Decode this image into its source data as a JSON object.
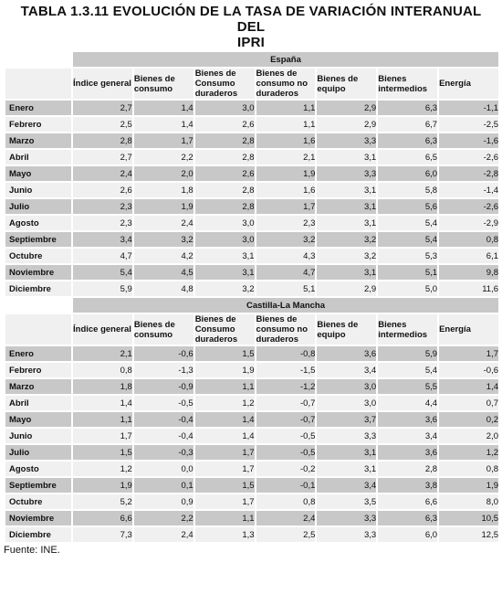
{
  "title": {
    "line1": "TABLA 1.3.11 EVOLUCIÓN  DE LA TASA DE VARIACIÓN INTERANUAL DEL",
    "line2": "IPRI"
  },
  "columns": [
    "Índice general",
    "Bienes de consumo",
    "Bienes de Consumo duraderos",
    "Bienes de consumo no duraderos",
    "Bienes de equipo",
    "Bienes intermedios",
    "Energía"
  ],
  "sections": [
    {
      "region": "España",
      "rows": [
        {
          "month": "Enero",
          "values": [
            "2,7",
            "1,4",
            "3,0",
            "1,1",
            "2,9",
            "6,3",
            "-1,1"
          ]
        },
        {
          "month": "Febrero",
          "values": [
            "2,5",
            "1,4",
            "2,6",
            "1,1",
            "2,9",
            "6,7",
            "-2,5"
          ]
        },
        {
          "month": "Marzo",
          "values": [
            "2,8",
            "1,7",
            "2,8",
            "1,6",
            "3,3",
            "6,3",
            "-1,6"
          ]
        },
        {
          "month": "Abril",
          "values": [
            "2,7",
            "2,2",
            "2,8",
            "2,1",
            "3,1",
            "6,5",
            "-2,6"
          ]
        },
        {
          "month": "Mayo",
          "values": [
            "2,4",
            "2,0",
            "2,6",
            "1,9",
            "3,3",
            "6,0",
            "-2,8"
          ]
        },
        {
          "month": "Junio",
          "values": [
            "2,6",
            "1,8",
            "2,8",
            "1,6",
            "3,1",
            "5,8",
            "-1,4"
          ]
        },
        {
          "month": "Julio",
          "values": [
            "2,3",
            "1,9",
            "2,8",
            "1,7",
            "3,1",
            "5,6",
            "-2,6"
          ]
        },
        {
          "month": "Agosto",
          "values": [
            "2,3",
            "2,4",
            "3,0",
            "2,3",
            "3,1",
            "5,4",
            "-2,9"
          ]
        },
        {
          "month": "Septiembre",
          "values": [
            "3,4",
            "3,2",
            "3,0",
            "3,2",
            "3,2",
            "5,4",
            "0,8"
          ]
        },
        {
          "month": "Octubre",
          "values": [
            "4,7",
            "4,2",
            "3,1",
            "4,3",
            "3,2",
            "5,3",
            "6,1"
          ]
        },
        {
          "month": "Noviembre",
          "values": [
            "5,4",
            "4,5",
            "3,1",
            "4,7",
            "3,1",
            "5,1",
            "9,8"
          ]
        },
        {
          "month": "Diciembre",
          "values": [
            "5,9",
            "4,8",
            "3,2",
            "5,1",
            "2,9",
            "5,0",
            "11,6"
          ]
        }
      ]
    },
    {
      "region": "Castilla-La Mancha",
      "rows": [
        {
          "month": "Enero",
          "values": [
            "2,1",
            "-0,6",
            "1,5",
            "-0,8",
            "3,6",
            "5,9",
            "1,7"
          ]
        },
        {
          "month": "Febrero",
          "values": [
            "0,8",
            "-1,3",
            "1,9",
            "-1,5",
            "3,4",
            "5,4",
            "-0,6"
          ]
        },
        {
          "month": "Marzo",
          "values": [
            "1,8",
            "-0,9",
            "1,1",
            "-1,2",
            "3,0",
            "5,5",
            "1,4"
          ]
        },
        {
          "month": "Abril",
          "values": [
            "1,4",
            "-0,5",
            "1,2",
            "-0,7",
            "3,0",
            "4,4",
            "0,7"
          ]
        },
        {
          "month": "Mayo",
          "values": [
            "1,1",
            "-0,4",
            "1,4",
            "-0,7",
            "3,7",
            "3,6",
            "0,2"
          ]
        },
        {
          "month": "Junio",
          "values": [
            "1,7",
            "-0,4",
            "1,4",
            "-0,5",
            "3,3",
            "3,4",
            "2,0"
          ]
        },
        {
          "month": "Julio",
          "values": [
            "1,5",
            "-0,3",
            "1,7",
            "-0,5",
            "3,1",
            "3,6",
            "1,2"
          ]
        },
        {
          "month": "Agosto",
          "values": [
            "1,2",
            "0,0",
            "1,7",
            "-0,2",
            "3,1",
            "2,8",
            "0,8"
          ]
        },
        {
          "month": "Septiembre",
          "values": [
            "1,9",
            "0,1",
            "1,5",
            "-0,1",
            "3,4",
            "3,8",
            "1,9"
          ]
        },
        {
          "month": "Octubre",
          "values": [
            "5,2",
            "0,9",
            "1,7",
            "0,8",
            "3,5",
            "6,6",
            "8,0"
          ]
        },
        {
          "month": "Noviembre",
          "values": [
            "6,6",
            "2,2",
            "1,1",
            "2,4",
            "3,3",
            "6,3",
            "10,5"
          ]
        },
        {
          "month": "Diciembre",
          "values": [
            "7,3",
            "2,4",
            "1,3",
            "2,5",
            "3,3",
            "6,0",
            "12,5"
          ]
        }
      ]
    }
  ],
  "source": "Fuente: INE."
}
